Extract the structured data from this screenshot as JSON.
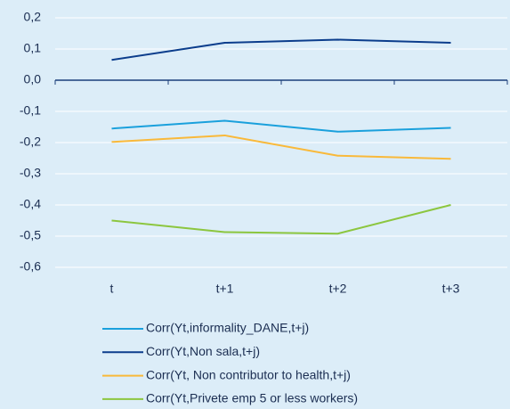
{
  "chart_data": {
    "type": "line",
    "categories": [
      "t",
      "t+1",
      "t+2",
      "t+3"
    ],
    "series": [
      {
        "name": "Corr(Yt,informality_DANE,t+j)",
        "color": "#1aa0dc",
        "values": [
          -0.155,
          -0.13,
          -0.165,
          -0.153
        ]
      },
      {
        "name": "Corr(Yt,Non sala,t+j)",
        "color": "#0b3d8c",
        "values": [
          0.065,
          0.12,
          0.13,
          0.12
        ]
      },
      {
        "name": "Corr(Yt, Non contributor to health,t+j)",
        "color": "#f9b93a",
        "values": [
          -0.198,
          -0.177,
          -0.242,
          -0.252
        ]
      },
      {
        "name": "Corr(Yt,Privete emp 5 or less workers)",
        "color": "#8cc63f",
        "values": [
          -0.45,
          -0.487,
          -0.492,
          -0.4
        ]
      }
    ],
    "ylim": [
      -0.6,
      0.2
    ],
    "yticks": [
      {
        "value": 0.2,
        "label": "0,2"
      },
      {
        "value": 0.1,
        "label": "0,1"
      },
      {
        "value": 0,
        "label": "0,0"
      },
      {
        "value": -0.1,
        "label": "-0,1"
      },
      {
        "value": -0.2,
        "label": "-0,2"
      },
      {
        "value": -0.3,
        "label": "-0,3"
      },
      {
        "value": -0.4,
        "label": "-0,4"
      },
      {
        "value": -0.5,
        "label": "-0,5"
      },
      {
        "value": -0.6,
        "label": "-0,6"
      }
    ],
    "grid": true,
    "legend": "bottom"
  }
}
